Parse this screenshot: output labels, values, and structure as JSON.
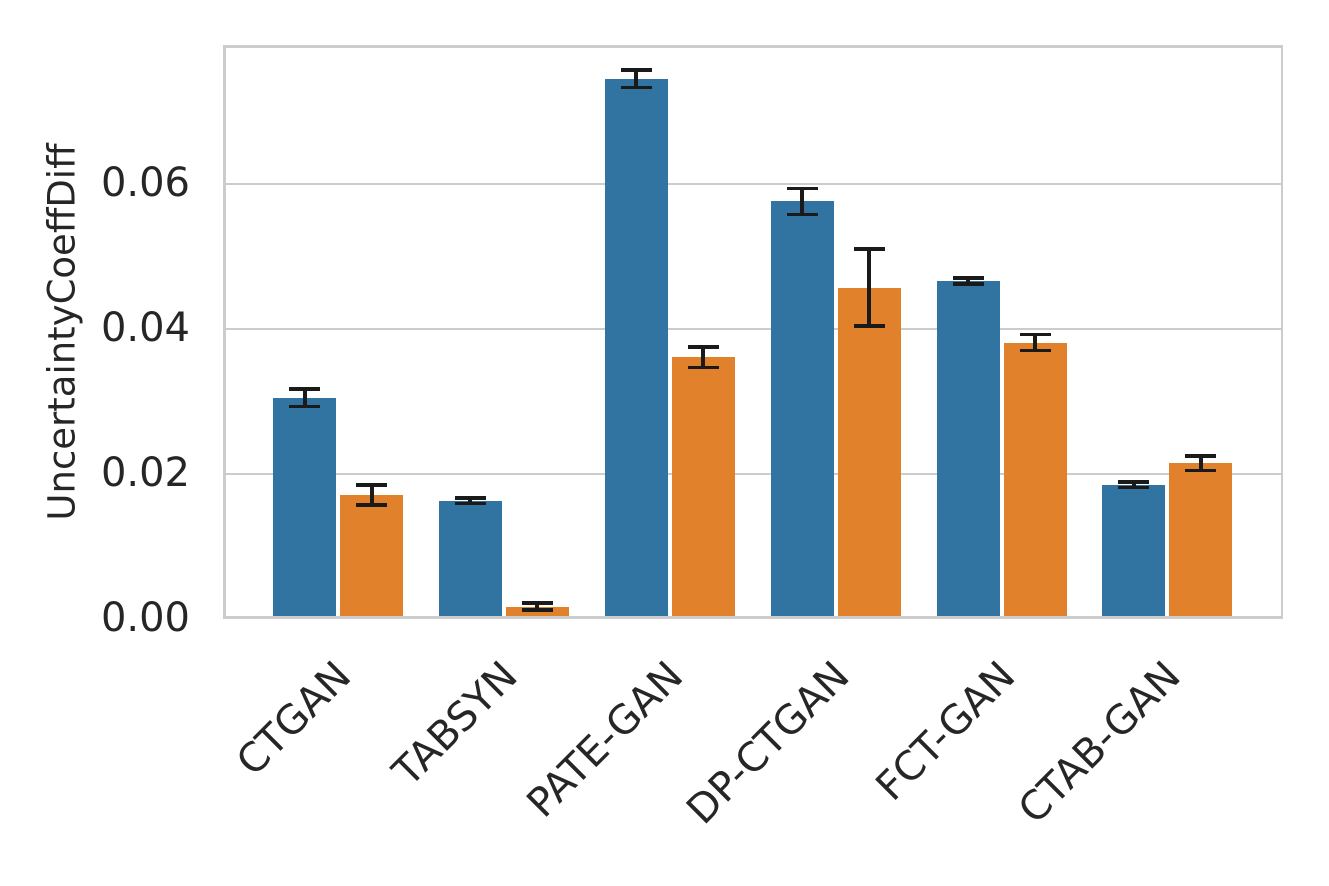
{
  "chart_data": {
    "type": "bar",
    "title": "",
    "xlabel": "",
    "ylabel": "UncertaintyCoeffDiff",
    "categories": [
      "CTGAN",
      "TABSYN",
      "PATE-GAN",
      "DP-CTGAN",
      "FCT-GAN",
      "CTAB-GAN"
    ],
    "series": [
      {
        "id": "blue",
        "color": "#3274a1",
        "values": [
          0.0301,
          0.0159,
          0.0741,
          0.0572,
          0.0462,
          0.0181
        ],
        "errors": [
          0.0012,
          0.0004,
          0.0012,
          0.0018,
          0.0004,
          0.0004
        ]
      },
      {
        "id": "orange",
        "color": "#e1812c",
        "values": [
          0.0167,
          0.0013,
          0.0357,
          0.0453,
          0.0377,
          0.0211
        ],
        "errors": [
          0.0014,
          0.0005,
          0.0014,
          0.0053,
          0.0011,
          0.001
        ]
      }
    ],
    "error_bar_color": "#1a1a1a",
    "yticks": {
      "values": [
        0.0,
        0.02,
        0.04,
        0.06
      ],
      "labels": [
        "0.00",
        "0.02",
        "0.04",
        "0.06"
      ]
    },
    "ylim": [
      0,
      0.0792
    ],
    "x_tick_rotation_deg": 45,
    "grid": true,
    "grid_color": "#cccccc",
    "legend": null
  }
}
